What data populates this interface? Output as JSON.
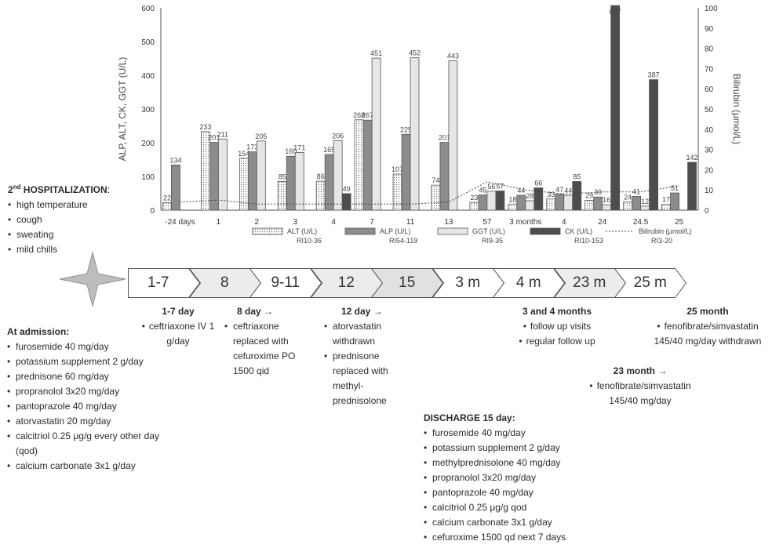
{
  "chart_data": {
    "type": "bar",
    "categories": [
      "-24 days",
      "1",
      "2",
      "3",
      "4",
      "7",
      "11",
      "13",
      "57",
      "3 months",
      "4",
      "24",
      "24.5",
      "25"
    ],
    "y_left": {
      "label": "ALP, ALT, CK, GGT (U/L)",
      "range": [
        0,
        600
      ],
      "ticks": [
        0,
        100,
        200,
        300,
        400,
        500,
        600
      ]
    },
    "y_right": {
      "label": "Bilirubin (μmol/L)",
      "range": [
        0,
        100
      ],
      "ticks": [
        0,
        10,
        20,
        30,
        40,
        50,
        60,
        70,
        80,
        90,
        100
      ]
    },
    "series": [
      {
        "name": "ALT (U/L)",
        "ri": "RI10-36",
        "color": "#ffffff",
        "pattern": "dots",
        "values": [
          22,
          233,
          154,
          85,
          86,
          268,
          107,
          74,
          23,
          18,
          33,
          29,
          24,
          17
        ],
        "labels": [
          "22",
          "233",
          "154",
          "85",
          "86",
          "268",
          "107",
          "74",
          "23",
          "18",
          "33",
          "29",
          "24",
          "17"
        ]
      },
      {
        "name": "ALP (U/L)",
        "ri": "RI54-119",
        "color": "#8c8c8c",
        "values": [
          134,
          201,
          173,
          160,
          165,
          267,
          225,
          201,
          45,
          44,
          47,
          39,
          41,
          51
        ],
        "labels": [
          "134",
          "201",
          "173",
          "160",
          "165",
          "267",
          "225",
          "201",
          "45",
          "44",
          "47",
          "39",
          "41",
          "51"
        ]
      },
      {
        "name": "GGT (U/L)",
        "ri": "RI9-35",
        "color": "#e6e6e6",
        "values": [
          null,
          211,
          205,
          171,
          206,
          451,
          452,
          443,
          56,
          28,
          44,
          16,
          12,
          null
        ],
        "labels": [
          "",
          "211",
          "205",
          "171",
          "206",
          "451",
          "452",
          "443",
          "56",
          "28",
          "44",
          "16",
          "12",
          ""
        ]
      },
      {
        "name": "CK (U/L)",
        "ri": "RI10-153",
        "color": "#4d4d4d",
        "values": [
          null,
          null,
          null,
          null,
          49,
          null,
          null,
          null,
          57,
          66,
          85,
          607,
          387,
          142
        ],
        "labels": [
          "",
          "",
          "",
          "",
          "49",
          "",
          "",
          "",
          "57",
          "66",
          "85",
          "607",
          "387",
          "142"
        ]
      },
      {
        "name": "Bilirubin (μmol/L)",
        "ri": "RI3-20",
        "type": "line",
        "style": "dotted",
        "values": [
          4,
          5,
          3,
          3,
          3,
          3,
          3,
          4,
          14,
          10,
          8,
          9,
          9,
          12
        ]
      }
    ]
  },
  "timeline": [
    {
      "label": "1-7",
      "fill": "#ffffff"
    },
    {
      "label": "8",
      "fill": "#ececec"
    },
    {
      "label": "9-11",
      "fill": "#ffffff"
    },
    {
      "label": "12",
      "fill": "#ececec"
    },
    {
      "label": "15",
      "fill": "#e1e1e1"
    },
    {
      "label": "3 m",
      "fill": "#ffffff"
    },
    {
      "label": "4 m",
      "fill": "#ffffff"
    },
    {
      "label": "23 m",
      "fill": "#ececec"
    },
    {
      "label": "25 m",
      "fill": "#ffffff"
    }
  ],
  "hospitalization": {
    "title_prefix": "2",
    "title_sup": "nd",
    "title_rest": " HOSPITALIZATION",
    "title_colon": ":",
    "items": [
      "high temperature",
      "cough",
      "sweating",
      "mild chills"
    ]
  },
  "admission": {
    "title": "At admission:",
    "items": [
      "furosemide 40 mg/day",
      "potassium supplement 2 g/day",
      "prednisone 60 mg/day",
      "propranolol 3x20 mg/day",
      "pantoprazole 40 mg/day",
      "atorvastatin 20 mg/day",
      "calcitriol 0.25 μg/g every other day (qod)",
      "calcium carbonate 3x1 g/day"
    ]
  },
  "day1_7": {
    "title": "1-7 day",
    "items": [
      "ceftriaxone IV 1 g/day"
    ]
  },
  "day8": {
    "title": "8 day →",
    "items": [
      "ceftriaxone replaced with cefuroxime PO 1500 qid"
    ]
  },
  "day12": {
    "title": "12 day →",
    "items": [
      "atorvastatin withdrawn",
      "prednisone replaced with methyl-prednisolone"
    ]
  },
  "discharge": {
    "title": "DISCHARGE 15 day:",
    "items": [
      "furosemide 40 mg/day",
      "potassium supplement 2 g/day",
      "methylprednisolone 40 mg/day",
      "propranolol 3x20 mg/day",
      "pantoprazole 40 mg/day",
      "calcitriol 0.25 μg/g qod",
      "calcium carbonate 3x1 g/day",
      "cefuroxime 1500 qd next 7 days"
    ]
  },
  "months3_4": {
    "title": "3 and 4 months",
    "items": [
      "follow up visits",
      "regular follow up"
    ]
  },
  "month23": {
    "title": "23 month →",
    "items": [
      "fenofibrate/simvastatin 145/40 mg/day"
    ]
  },
  "month25": {
    "title": "25 month",
    "items": [
      "fenofibrate/simvastatin 145/40 mg/day withdrawn"
    ]
  }
}
